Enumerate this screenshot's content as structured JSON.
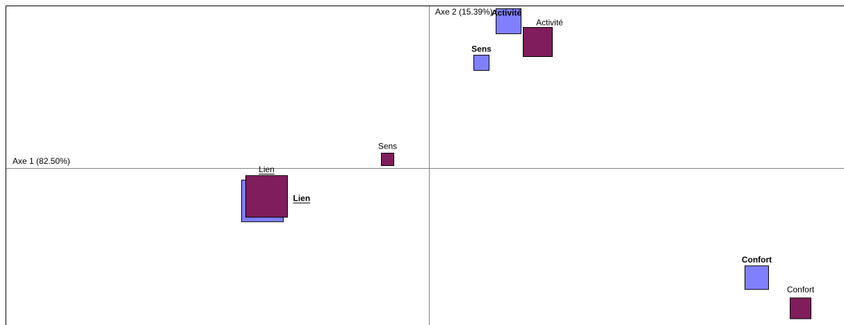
{
  "chart_data": {
    "type": "scatter",
    "xlabel": "Axe 1 (82.50%)",
    "ylabel": "Axe 2 (15.39%)",
    "colors": {
      "bold_points": "#8080ff",
      "plain_points": "#801d5c",
      "axis": "#808080",
      "frame": "#000000"
    },
    "points": [
      {
        "label": "Activité",
        "series": "bold",
        "x": 0.19,
        "y": 0.163,
        "size": 36
      },
      {
        "label": "Activité",
        "series": "plain",
        "x": 0.26,
        "y": 0.14,
        "size": 42
      },
      {
        "label": "Sens",
        "series": "bold",
        "x": 0.125,
        "y": 0.117,
        "size": 22
      },
      {
        "label": "Sens",
        "series": "plain",
        "x": -0.1,
        "y": 0.01,
        "size": 18
      },
      {
        "label": "Lien",
        "series": "bold",
        "x": -0.4,
        "y": -0.036,
        "size": 60
      },
      {
        "label": "Lien",
        "series": "plain",
        "x": -0.39,
        "y": -0.031,
        "size": 60
      },
      {
        "label": "Confort",
        "series": "bold",
        "x": 0.785,
        "y": -0.121,
        "size": 34
      },
      {
        "label": "Confort",
        "series": "plain",
        "x": 0.89,
        "y": -0.155,
        "size": 30
      }
    ]
  }
}
